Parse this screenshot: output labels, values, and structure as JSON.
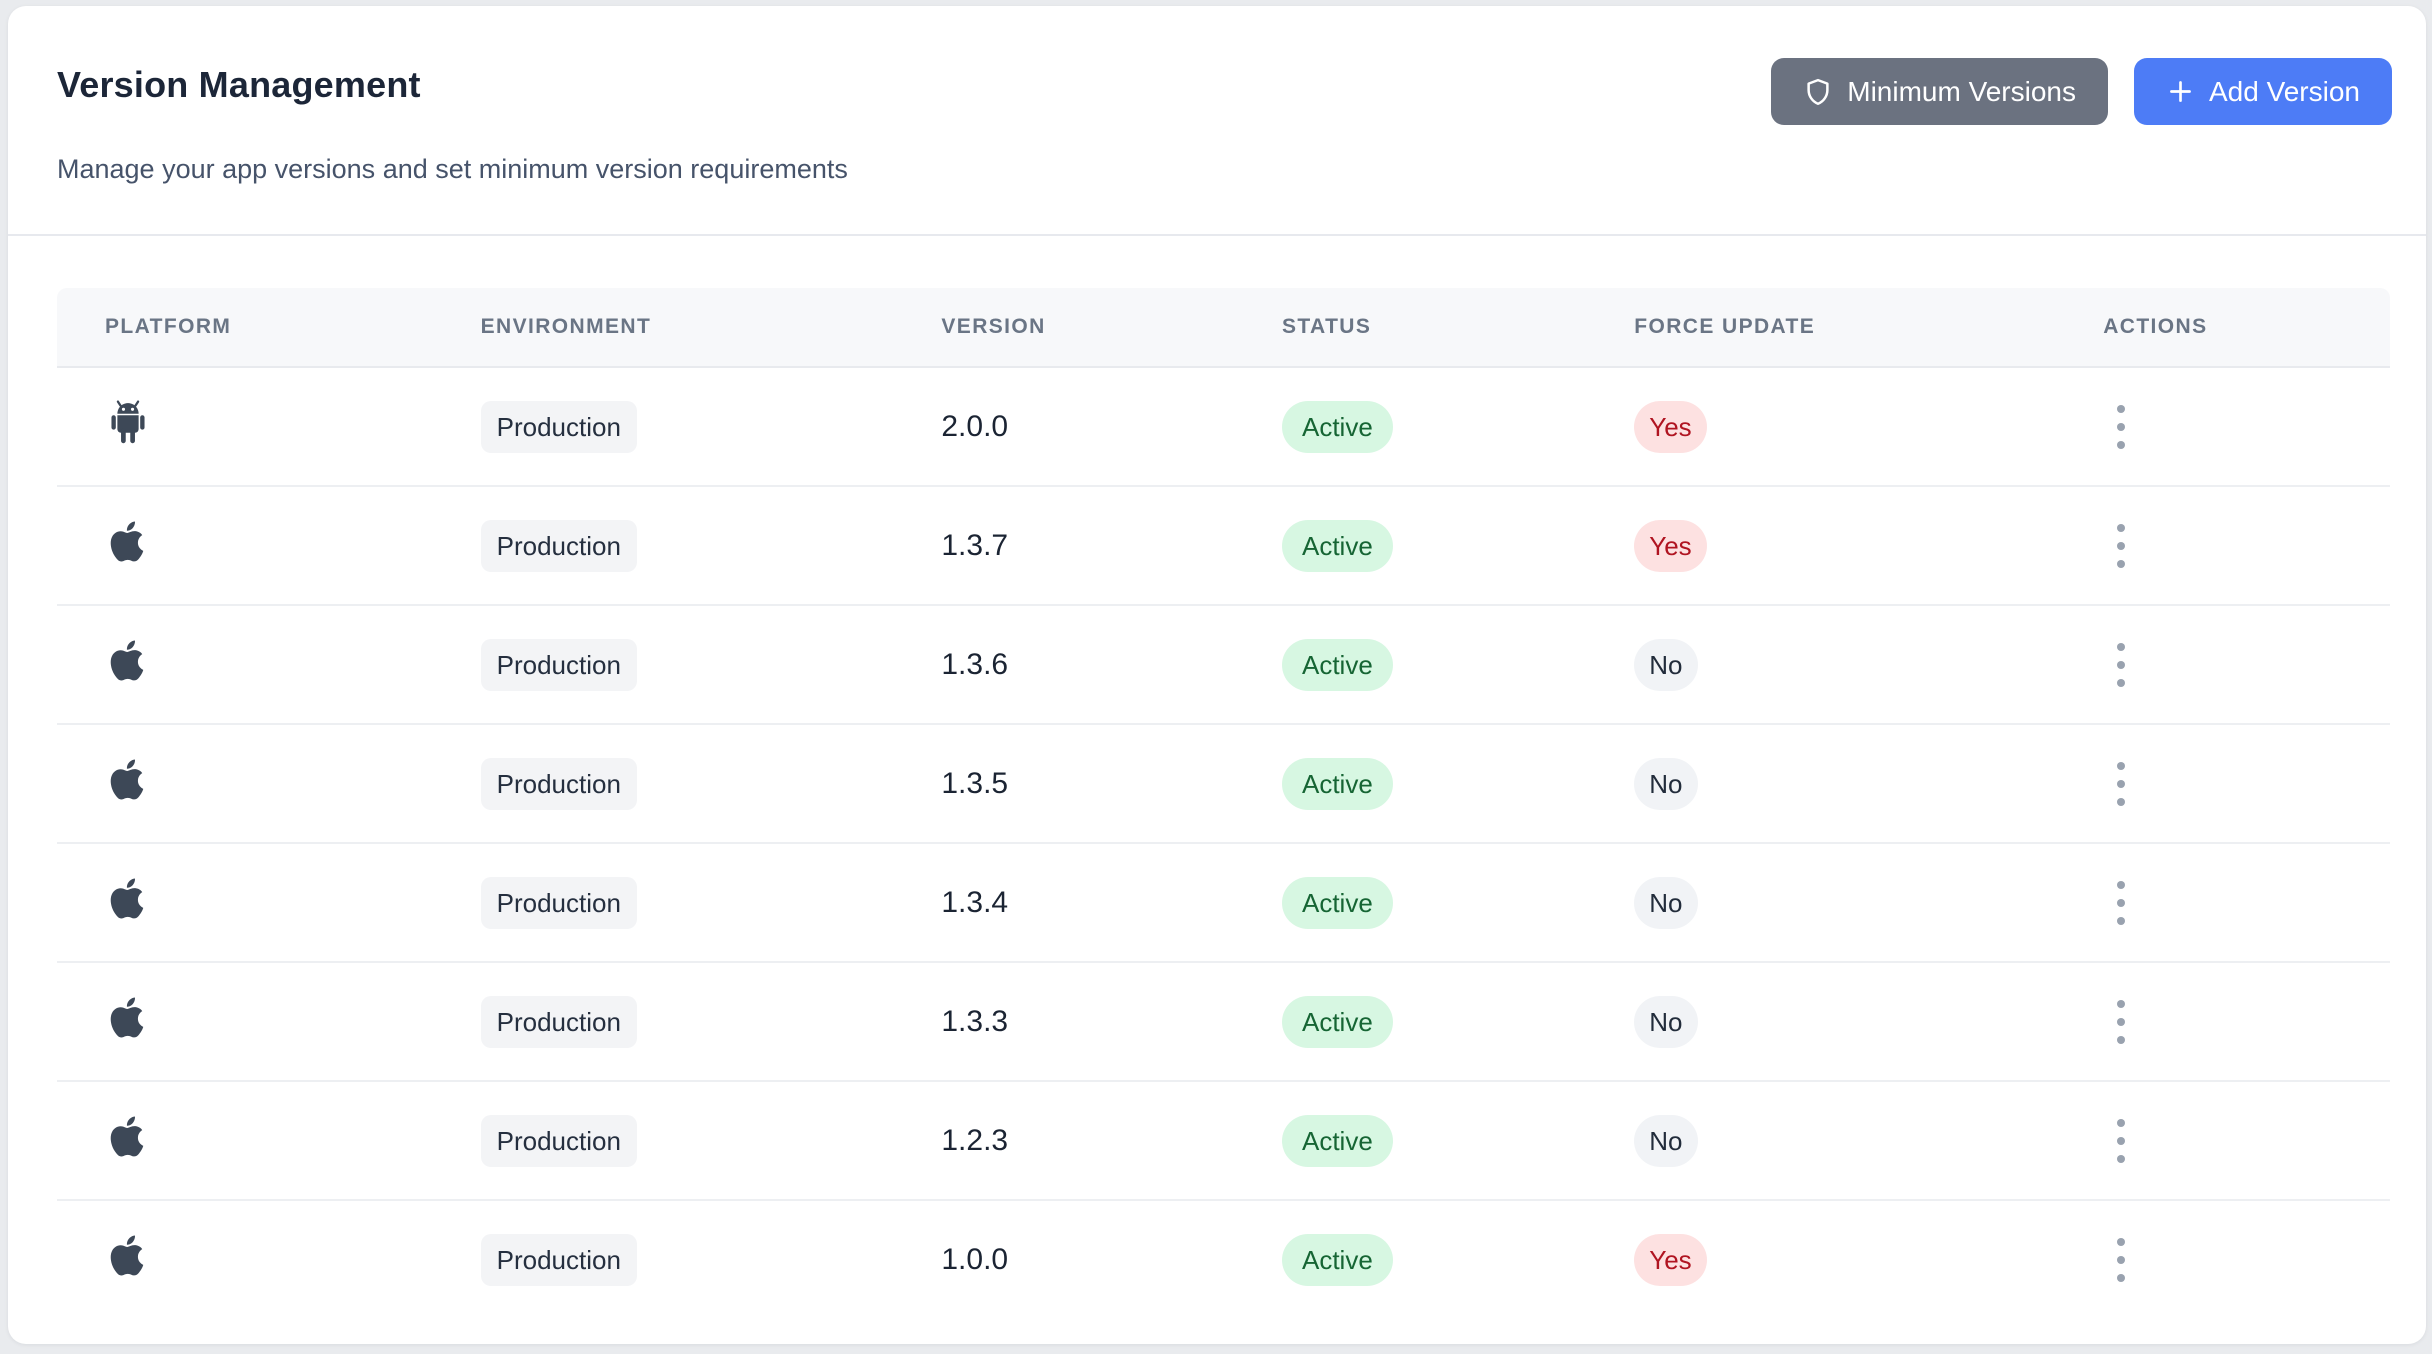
{
  "header": {
    "title": "Version Management",
    "subtitle": "Manage your app versions and set minimum version requirements",
    "minimum_versions_label": "Minimum Versions",
    "add_version_label": "Add Version"
  },
  "table": {
    "columns": [
      "PLATFORM",
      "ENVIRONMENT",
      "VERSION",
      "STATUS",
      "FORCE UPDATE",
      "ACTIONS"
    ],
    "rows": [
      {
        "platform": "android",
        "environment": "Production",
        "version": "2.0.0",
        "status": "Active",
        "force_update": "Yes"
      },
      {
        "platform": "apple",
        "environment": "Production",
        "version": "1.3.7",
        "status": "Active",
        "force_update": "Yes"
      },
      {
        "platform": "apple",
        "environment": "Production",
        "version": "1.3.6",
        "status": "Active",
        "force_update": "No"
      },
      {
        "platform": "apple",
        "environment": "Production",
        "version": "1.3.5",
        "status": "Active",
        "force_update": "No"
      },
      {
        "platform": "apple",
        "environment": "Production",
        "version": "1.3.4",
        "status": "Active",
        "force_update": "No"
      },
      {
        "platform": "apple",
        "environment": "Production",
        "version": "1.3.3",
        "status": "Active",
        "force_update": "No"
      },
      {
        "platform": "apple",
        "environment": "Production",
        "version": "1.2.3",
        "status": "Active",
        "force_update": "No"
      },
      {
        "platform": "apple",
        "environment": "Production",
        "version": "1.0.0",
        "status": "Active",
        "force_update": "Yes"
      }
    ]
  },
  "icons": {
    "minimum_versions_button": "shield-icon",
    "add_version_button": "plus-icon",
    "row_actions": "kebab-menu-icon",
    "platform_android": "android-icon",
    "platform_apple": "apple-icon"
  },
  "colors": {
    "page_background": "#e9ebee",
    "card_background": "#ffffff",
    "primary_button": "#4d7cf6",
    "secondary_button": "#6b7280",
    "environment_badge_bg": "#f3f4f6",
    "status_active_bg": "#d7f7e2",
    "status_active_text": "#166534",
    "force_yes_bg": "#fde1e1",
    "force_yes_text": "#b01421",
    "force_no_bg": "#f1f3f6",
    "force_no_text": "#222c3b",
    "platform_icon": "#3d4857"
  }
}
